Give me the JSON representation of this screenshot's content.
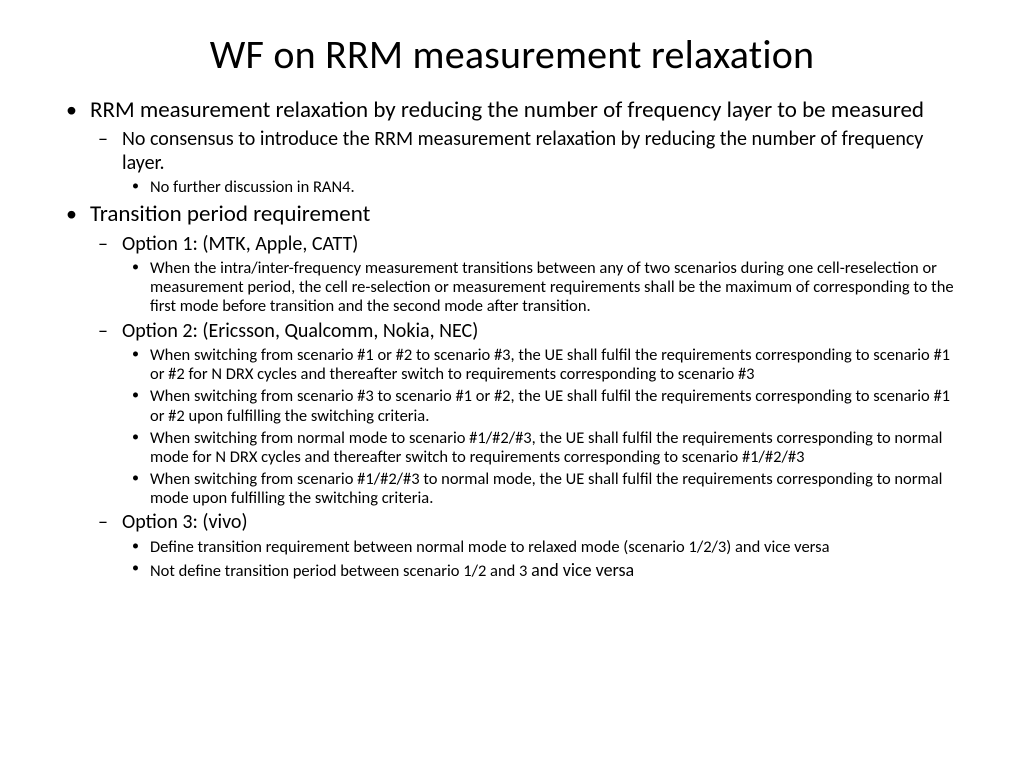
{
  "title": "WF on RRM measurement relaxation",
  "bullets": {
    "b1": "RRM measurement relaxation by reducing the number of frequency layer to be measured",
    "b1_1": "No consensus to introduce the RRM measurement relaxation by reducing the number of frequency layer.",
    "b1_1_1": "No further discussion in RAN4.",
    "b2": "Transition period requirement",
    "b2_1": "Option 1: (MTK, Apple, CATT)",
    "b2_1_1": "When the intra/inter-frequency measurement transitions between any of two scenarios during one cell-reselection or measurement period, the cell re-selection or measurement requirements shall be the maximum of corresponding to the first mode before transition and the second mode after transition.",
    "b2_2": "Option 2: (Ericsson, Qualcomm, Nokia, NEC)",
    "b2_2_1": "When switching from scenario #1 or #2 to scenario #3, the UE shall fulfil the requirements corresponding to scenario #1 or #2 for N DRX cycles and thereafter switch to requirements corresponding to scenario #3",
    "b2_2_2": "When switching from scenario #3 to scenario #1 or #2, the UE shall fulfil the requirements corresponding to scenario #1 or #2 upon fulfilling the switching criteria.",
    "b2_2_3": "When switching from normal mode to scenario #1/#2/#3, the UE shall fulfil the requirements corresponding to normal mode for N DRX cycles and thereafter switch to requirements corresponding to scenario #1/#2/#3",
    "b2_2_4": "When switching from scenario #1/#2/#3 to normal mode, the UE shall fulfil the requirements corresponding to normal mode upon fulfilling the switching criteria.",
    "b2_3": "Option 3: (vivo)",
    "b2_3_1": "Define transition requirement between normal mode to relaxed mode (scenario 1/2/3) and vice versa",
    "b2_3_2a": "Not define transition period between scenario 1/2 and 3 ",
    "b2_3_2b": "and vice versa"
  },
  "style": {
    "background_color": "#ffffff",
    "text_color": "#000000",
    "font_family": "Calibri",
    "title_fontsize": 40,
    "lvl1_fontsize": 23,
    "lvl2_fontsize": 20,
    "lvl3_fontsize": 16.5,
    "lvl1_marker": "disc",
    "lvl2_marker": "dash",
    "lvl3_marker": "disc-small"
  }
}
